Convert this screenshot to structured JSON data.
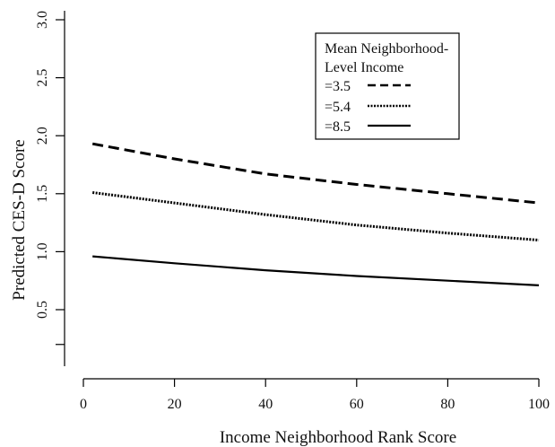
{
  "chart_data": {
    "type": "line",
    "title": "",
    "xlabel": "Income Neighborhood Rank Score",
    "ylabel": "Predicted CES-D Score",
    "xlim": [
      0,
      100
    ],
    "ylim": [
      0.35,
      3.05
    ],
    "x_ticks": [
      0,
      20,
      40,
      60,
      80,
      100
    ],
    "x_tick_labels": [
      "0",
      "20",
      "40",
      "60",
      "80",
      "100"
    ],
    "y_ticks": [
      0.5,
      1.0,
      1.5,
      2.0,
      2.5,
      3.0
    ],
    "y_tick_labels": [
      "0.5",
      "1.0",
      "1.5",
      "2.0",
      "2.5",
      "3.0"
    ],
    "y_extra_tick": 0.2,
    "grid": false,
    "legend": {
      "title_lines": [
        "Mean Neighborhood-",
        "Level Income"
      ],
      "placement": "top-right"
    },
    "x": [
      2,
      20,
      40,
      60,
      80,
      100
    ],
    "series": [
      {
        "name": "=3.5",
        "style": "dashed",
        "values": [
          1.93,
          1.8,
          1.67,
          1.58,
          1.5,
          1.42
        ]
      },
      {
        "name": "=5.4",
        "style": "dotted",
        "values": [
          1.51,
          1.42,
          1.32,
          1.23,
          1.16,
          1.1
        ]
      },
      {
        "name": "=8.5",
        "style": "solid",
        "values": [
          0.96,
          0.9,
          0.84,
          0.79,
          0.75,
          0.71
        ]
      }
    ]
  }
}
